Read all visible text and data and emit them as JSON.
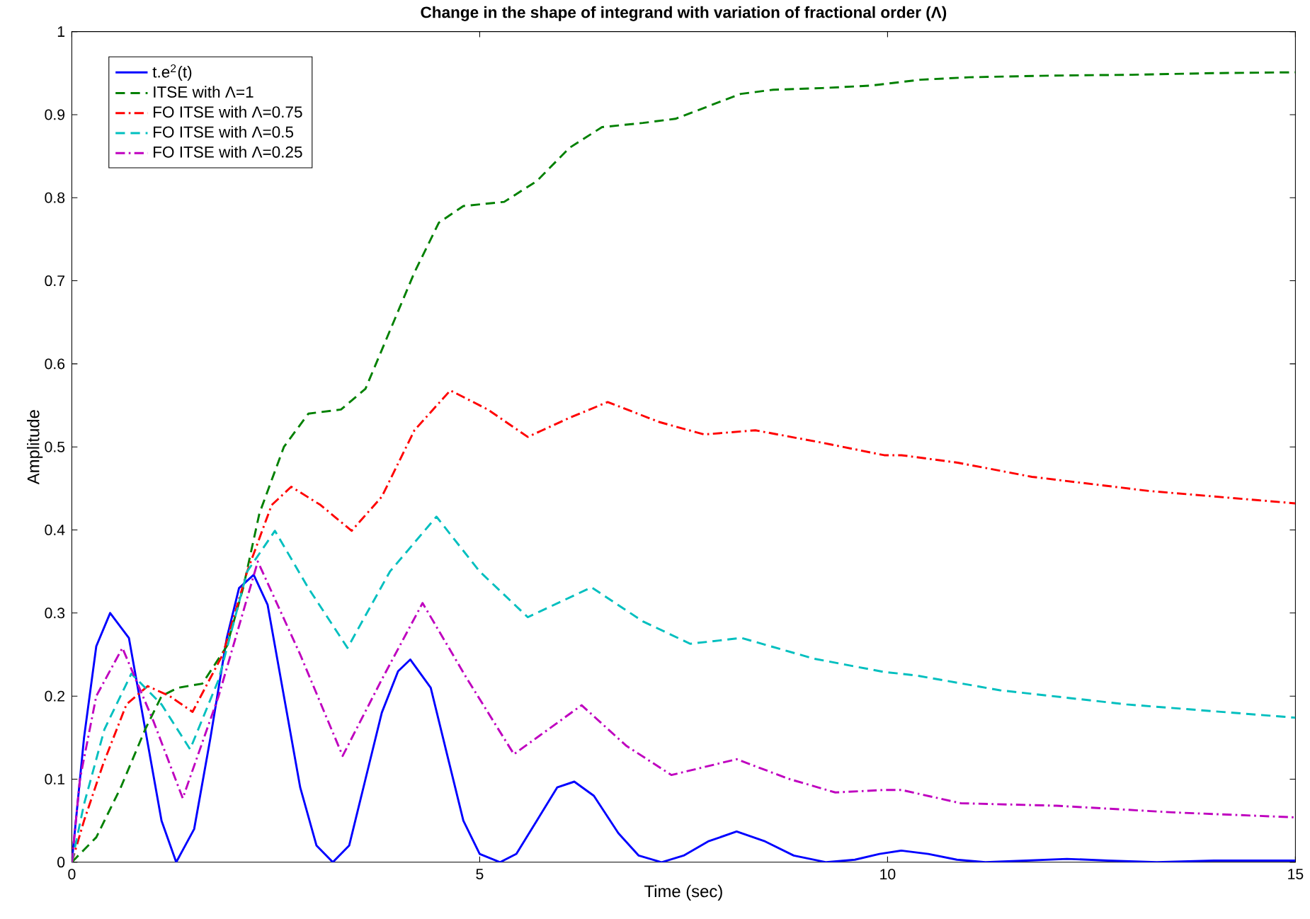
{
  "chart_data": {
    "type": "line",
    "title": "Change in the shape of integrand with variation of fractional order (Λ)",
    "xlabel": "Time (sec)",
    "ylabel": "Amplitude",
    "xlim": [
      0,
      15
    ],
    "ylim": [
      0,
      1
    ],
    "xticks": [
      0,
      5,
      10,
      15
    ],
    "yticks": [
      0,
      0.1,
      0.2,
      0.3,
      0.4,
      0.5,
      0.6,
      0.7,
      0.8,
      0.9,
      1
    ],
    "grid": false,
    "legend": "top left",
    "marker": "none",
    "series": [
      {
        "name": "t.e$^{2}$(t)",
        "color": "#0000ff",
        "line_style": "solid",
        "x": [
          0,
          0.15,
          0.3,
          0.47,
          0.7,
          0.9,
          1.1,
          1.28,
          1.5,
          1.7,
          1.9,
          2.05,
          2.23,
          2.4,
          2.6,
          2.8,
          3.0,
          3.2,
          3.4,
          3.6,
          3.8,
          4.0,
          4.15,
          4.4,
          4.6,
          4.8,
          5.0,
          5.25,
          5.45,
          5.7,
          5.95,
          6.16,
          6.4,
          6.7,
          6.95,
          7.23,
          7.5,
          7.8,
          8.15,
          8.5,
          8.85,
          9.25,
          9.6,
          9.9,
          10.17,
          10.5,
          10.85,
          11.2,
          11.7,
          12.2,
          12.7,
          13.3,
          14,
          15
        ],
        "values": [
          0,
          0.15,
          0.26,
          0.3,
          0.27,
          0.16,
          0.05,
          0,
          0.04,
          0.15,
          0.27,
          0.33,
          0.346,
          0.31,
          0.2,
          0.09,
          0.02,
          0,
          0.02,
          0.1,
          0.18,
          0.23,
          0.244,
          0.21,
          0.13,
          0.05,
          0.01,
          0,
          0.01,
          0.05,
          0.09,
          0.097,
          0.08,
          0.035,
          0.008,
          0,
          0.008,
          0.025,
          0.037,
          0.025,
          0.008,
          0,
          0.003,
          0.01,
          0.014,
          0.01,
          0.003,
          0,
          0.002,
          0.004,
          0.002,
          0,
          0.002,
          0.002
        ]
      },
      {
        "name": "ITSE with Λ=1",
        "color": "#008000",
        "line_style": "dashed",
        "x": [
          0,
          0.3,
          0.6,
          0.9,
          1.1,
          1.3,
          1.6,
          1.9,
          2.1,
          2.3,
          2.6,
          2.9,
          3.3,
          3.6,
          3.9,
          4.2,
          4.5,
          4.8,
          5.3,
          5.7,
          6.1,
          6.5,
          7.0,
          7.4,
          7.8,
          8.2,
          8.6,
          9.2,
          9.8,
          10.4,
          11.0,
          12,
          13,
          14,
          15
        ],
        "values": [
          0,
          0.03,
          0.09,
          0.16,
          0.2,
          0.21,
          0.215,
          0.26,
          0.33,
          0.42,
          0.5,
          0.54,
          0.545,
          0.57,
          0.64,
          0.71,
          0.77,
          0.79,
          0.795,
          0.82,
          0.86,
          0.885,
          0.89,
          0.895,
          0.91,
          0.925,
          0.93,
          0.932,
          0.935,
          0.942,
          0.945,
          0.947,
          0.948,
          0.95,
          0.951
        ]
      },
      {
        "name": "FO ITSE with Λ=0.75",
        "color": "#ff0000",
        "line_style": "dashdot",
        "x": [
          0,
          0.15,
          0.38,
          0.67,
          0.93,
          1.2,
          1.48,
          1.85,
          2.15,
          2.45,
          2.69,
          3.05,
          3.43,
          3.8,
          4.2,
          4.64,
          5.1,
          5.59,
          6.1,
          6.57,
          7.2,
          7.75,
          8.38,
          9.2,
          9.96,
          10.17,
          10.86,
          11.77,
          13.2,
          15
        ],
        "values": [
          0,
          0.05,
          0.117,
          0.19,
          0.212,
          0.2,
          0.181,
          0.25,
          0.35,
          0.43,
          0.452,
          0.43,
          0.399,
          0.44,
          0.52,
          0.568,
          0.545,
          0.512,
          0.535,
          0.554,
          0.53,
          0.515,
          0.52,
          0.505,
          0.49,
          0.49,
          0.481,
          0.464,
          0.447,
          0.432
        ]
      },
      {
        "name": "FO ITSE with Λ=0.5",
        "color": "#00bfbf",
        "line_style": "dashed",
        "x": [
          0,
          0.15,
          0.4,
          0.73,
          1.1,
          1.45,
          1.8,
          2.15,
          2.49,
          2.9,
          3.38,
          3.9,
          4.47,
          5.0,
          5.59,
          6.37,
          7.0,
          7.58,
          8.21,
          9.1,
          9.96,
          10.34,
          11.38,
          12.93,
          15
        ],
        "values": [
          0,
          0.07,
          0.16,
          0.227,
          0.19,
          0.136,
          0.22,
          0.35,
          0.399,
          0.33,
          0.258,
          0.35,
          0.416,
          0.35,
          0.295,
          0.331,
          0.29,
          0.263,
          0.27,
          0.245,
          0.229,
          0.225,
          0.207,
          0.19,
          0.174
        ]
      },
      {
        "name": "FO ITSE with Λ=0.25",
        "color": "#bf00bf",
        "line_style": "dashdot",
        "x": [
          0,
          0.1,
          0.3,
          0.62,
          1.0,
          1.36,
          1.8,
          2.28,
          2.8,
          3.32,
          3.8,
          4.3,
          4.85,
          5.42,
          6.25,
          6.8,
          7.35,
          8.15,
          8.8,
          9.36,
          9.96,
          10.17,
          10.9,
          12.07,
          13.5,
          15
        ],
        "values": [
          0,
          0.1,
          0.2,
          0.258,
          0.17,
          0.077,
          0.2,
          0.362,
          0.25,
          0.128,
          0.22,
          0.312,
          0.22,
          0.13,
          0.189,
          0.14,
          0.105,
          0.124,
          0.1,
          0.084,
          0.087,
          0.087,
          0.071,
          0.068,
          0.06,
          0.054
        ]
      }
    ]
  }
}
